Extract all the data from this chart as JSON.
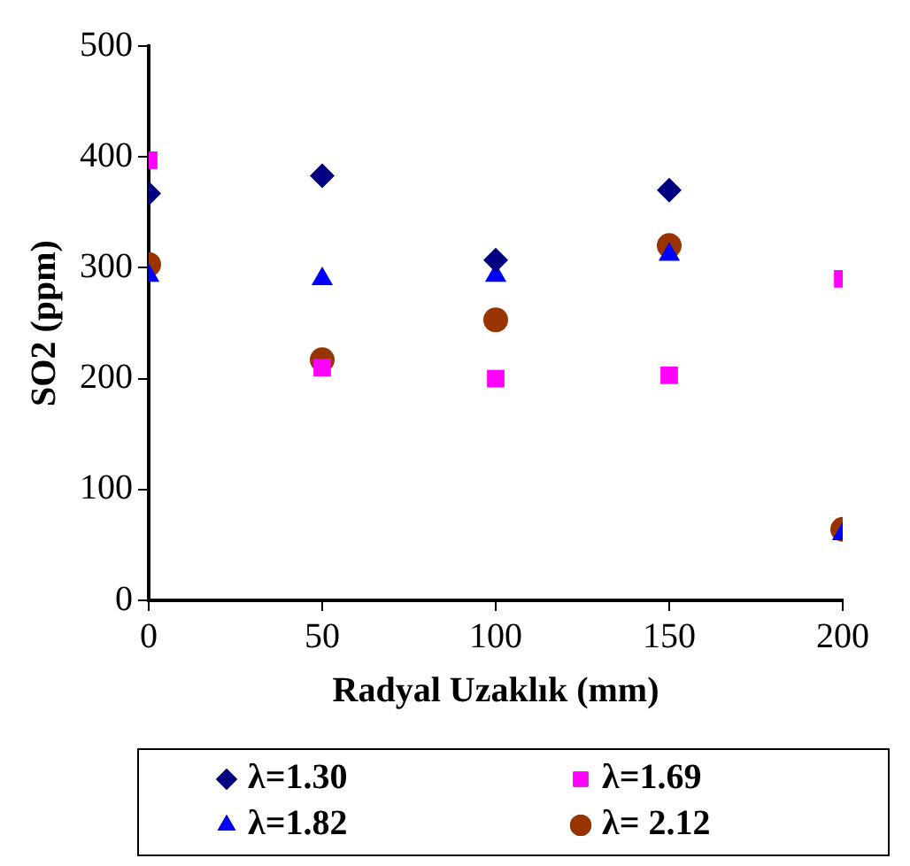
{
  "chart_data": {
    "type": "scatter",
    "xlabel": "Radyal Uzaklık (mm)",
    "ylabel": "SO2 (ppm)",
    "x": [
      0,
      50,
      100,
      150,
      200
    ],
    "xlim": [
      0,
      200
    ],
    "xticks": [
      0,
      50,
      100,
      150,
      200
    ],
    "ylim": [
      0,
      500
    ],
    "yticks": [
      0,
      100,
      200,
      300,
      400,
      500
    ],
    "grid": false,
    "legend": "bottom",
    "series": [
      {
        "name": "λ=1.30",
        "color": "#000080",
        "marker": "diamond",
        "values": [
          367,
          383,
          307,
          370,
          null
        ]
      },
      {
        "name": "λ=1.69",
        "color": "#ff00ff",
        "marker": "square",
        "values": [
          397,
          210,
          200,
          203,
          290
        ]
      },
      {
        "name": "λ=1.82",
        "color": "#0000ff",
        "marker": "triangle",
        "values": [
          293,
          290,
          293,
          312,
          60
        ]
      },
      {
        "name": "λ= 2.12",
        "color": "#993300",
        "marker": "circle",
        "values": [
          303,
          217,
          253,
          320,
          64
        ]
      }
    ]
  }
}
